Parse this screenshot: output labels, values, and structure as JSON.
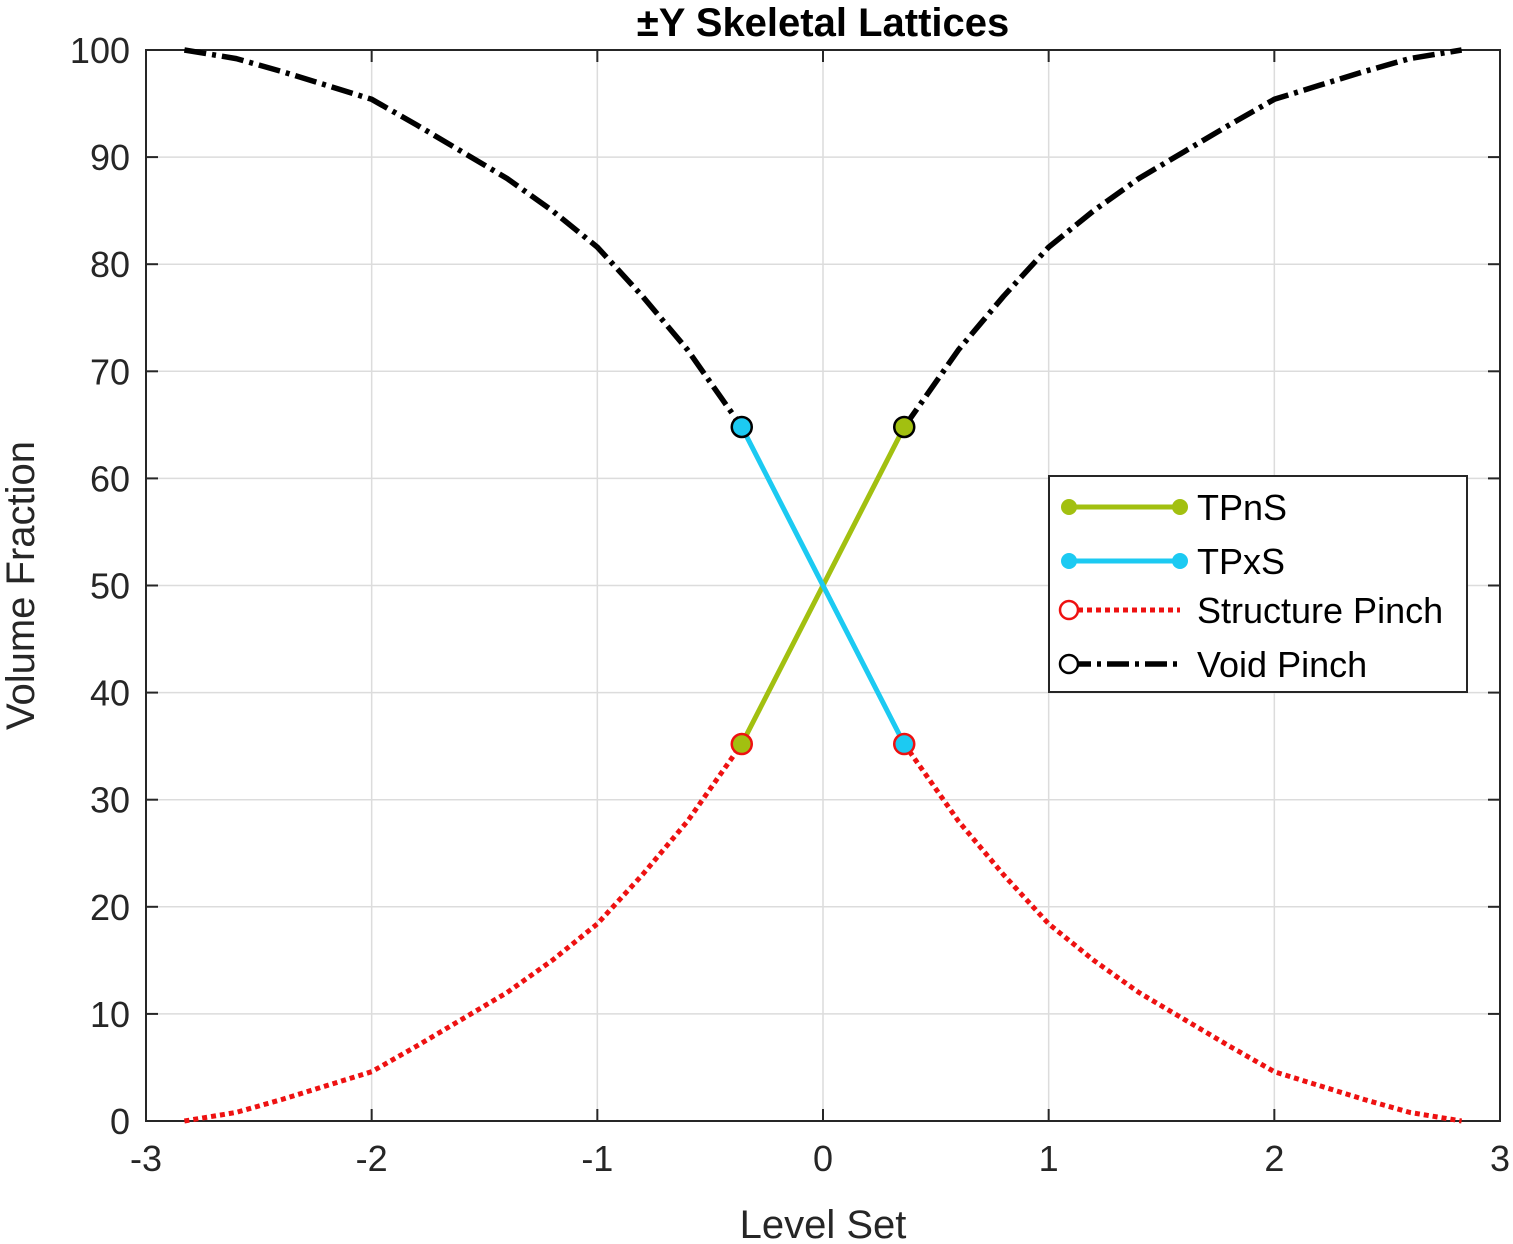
{
  "chart_data": {
    "type": "line",
    "title": "±Y Skeletal Lattices",
    "xlabel": "Level Set",
    "ylabel": "Volume Fraction",
    "xlim": [
      -3,
      3
    ],
    "ylim": [
      0,
      100
    ],
    "xticks": [
      -3,
      -2,
      -1,
      0,
      1,
      2,
      3
    ],
    "yticks": [
      0,
      10,
      20,
      30,
      40,
      50,
      60,
      70,
      80,
      90,
      100
    ],
    "xtick_labels": [
      "-3",
      "-2",
      "-1",
      "0",
      "1",
      "2",
      "3"
    ],
    "ytick_labels": [
      "0",
      "10",
      "20",
      "30",
      "40",
      "50",
      "60",
      "70",
      "80",
      "90",
      "100"
    ],
    "grid": true,
    "legend_position": "right-middle",
    "series": [
      {
        "name": "TPnS",
        "color": "#a2c010",
        "style": "solid-dot",
        "x": [
          -0.36,
          0.36
        ],
        "y": [
          35.2,
          64.8
        ]
      },
      {
        "name": "TPxS",
        "color": "#1ccaf2",
        "style": "solid-dot",
        "x": [
          -0.36,
          0.36
        ],
        "y": [
          64.8,
          35.2
        ]
      },
      {
        "name": "Structure Pinch",
        "color": "#ee1111",
        "style": "dotted",
        "marker": "open-circle",
        "segments": [
          {
            "x": [
              -2.83,
              -2.6,
              -2.4,
              -2.2,
              -2.0,
              -1.8,
              -1.6,
              -1.4,
              -1.2,
              -1.0,
              -0.8,
              -0.6,
              -0.45,
              -0.36
            ],
            "y": [
              0,
              0.8,
              2.0,
              3.3,
              4.6,
              7.0,
              9.5,
              12.0,
              15.0,
              18.4,
              23.0,
              28.0,
              32.5,
              35.2
            ]
          },
          {
            "x": [
              0.36,
              0.45,
              0.6,
              0.8,
              1.0,
              1.2,
              1.4,
              1.6,
              1.8,
              2.0,
              2.2,
              2.4,
              2.6,
              2.83
            ],
            "y": [
              35.2,
              32.5,
              28.0,
              23.0,
              18.4,
              15.0,
              12.0,
              9.5,
              7.0,
              4.6,
              3.3,
              2.0,
              0.8,
              0
            ]
          }
        ],
        "markers": [
          {
            "x": -0.36,
            "y": 35.2,
            "fill": "#a2c010"
          },
          {
            "x": 0.36,
            "y": 35.2,
            "fill": "#1ccaf2"
          }
        ]
      },
      {
        "name": "Void Pinch",
        "color": "#000000",
        "style": "dashed",
        "marker": "open-circle",
        "segments": [
          {
            "x": [
              -2.83,
              -2.6,
              -2.4,
              -2.2,
              -2.0,
              -1.8,
              -1.6,
              -1.4,
              -1.2,
              -1.0,
              -0.8,
              -0.6,
              -0.45,
              -0.36
            ],
            "y": [
              100,
              99.2,
              98.0,
              96.7,
              95.4,
              93.0,
              90.5,
              88.0,
              85.0,
              81.6,
              77.0,
              72.0,
              67.5,
              64.8
            ]
          },
          {
            "x": [
              0.36,
              0.45,
              0.6,
              0.8,
              1.0,
              1.2,
              1.4,
              1.6,
              1.8,
              2.0,
              2.2,
              2.4,
              2.6,
              2.83
            ],
            "y": [
              64.8,
              67.5,
              72.0,
              77.0,
              81.6,
              85.0,
              88.0,
              90.5,
              93.0,
              95.4,
              96.7,
              98.0,
              99.2,
              100
            ]
          }
        ],
        "markers": [
          {
            "x": -0.36,
            "y": 64.8,
            "fill": "#1ccaf2"
          },
          {
            "x": 0.36,
            "y": 64.8,
            "fill": "#a2c010"
          }
        ]
      }
    ]
  }
}
